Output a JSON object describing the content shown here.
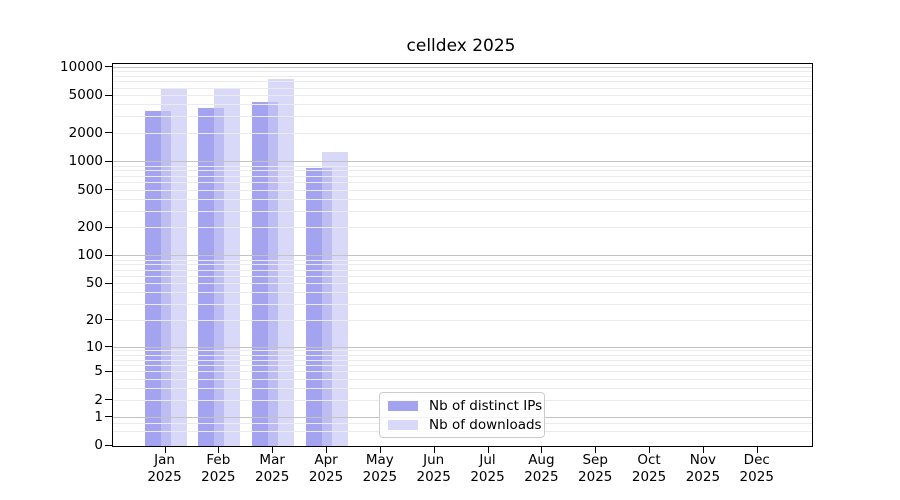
{
  "chart_data": {
    "type": "bar",
    "title": "celldex 2025",
    "categories": [
      {
        "month": "Jan",
        "year": "2025"
      },
      {
        "month": "Feb",
        "year": "2025"
      },
      {
        "month": "Mar",
        "year": "2025"
      },
      {
        "month": "Apr",
        "year": "2025"
      },
      {
        "month": "May",
        "year": "2025"
      },
      {
        "month": "Jun",
        "year": "2025"
      },
      {
        "month": "Jul",
        "year": "2025"
      },
      {
        "month": "Aug",
        "year": "2025"
      },
      {
        "month": "Sep",
        "year": "2025"
      },
      {
        "month": "Oct",
        "year": "2025"
      },
      {
        "month": "Nov",
        "year": "2025"
      },
      {
        "month": "Dec",
        "year": "2025"
      }
    ],
    "series": [
      {
        "name": "Nb of distinct IPs",
        "color": "#a3a3ef",
        "values": [
          3500,
          3750,
          4300,
          870,
          null,
          null,
          null,
          null,
          null,
          null,
          null,
          null
        ]
      },
      {
        "name": "Nb of downloads",
        "color": "#d8d8f8",
        "values": [
          5900,
          6100,
          7600,
          1280,
          null,
          null,
          null,
          null,
          null,
          null,
          null,
          null
        ]
      }
    ],
    "overlap_color": "#bdbdf4",
    "y_axis": {
      "scale": "log1p",
      "ticks": [
        0,
        1,
        2,
        5,
        10,
        20,
        50,
        100,
        200,
        500,
        1000,
        2000,
        5000,
        10000
      ],
      "max": 10000
    },
    "grid": true,
    "gridline_major_color": "#c3c3c3",
    "gridline_minor_color": "#ebebeb",
    "legend_position": "lower center"
  }
}
